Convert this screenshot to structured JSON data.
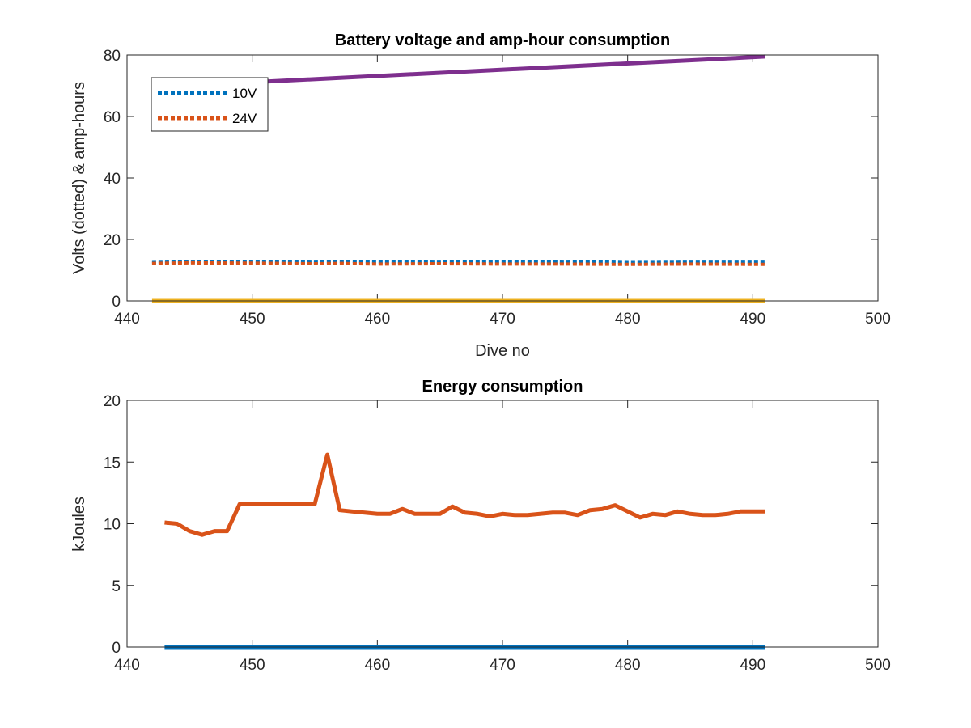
{
  "chart_data": [
    {
      "type": "line",
      "title": "Battery voltage and amp-hour consumption",
      "xlabel": "Dive no",
      "ylabel": "Volts (dotted) & amp-hours",
      "xlim": [
        440,
        500
      ],
      "ylim": [
        0,
        80
      ],
      "xticks": [
        "440",
        "450",
        "460",
        "470",
        "480",
        "490",
        "500"
      ],
      "yticks": [
        "0",
        "20",
        "40",
        "60",
        "80"
      ],
      "grid": false,
      "legend": {
        "placement": "top-left",
        "entries": [
          "10V",
          "24V"
        ]
      },
      "series": [
        {
          "name": "10V",
          "style": "dotted",
          "color": "#0072BD",
          "x": [
            442,
            445,
            450,
            455,
            457,
            460,
            465,
            470,
            475,
            477,
            480,
            485,
            491
          ],
          "y": [
            12.5,
            12.8,
            12.8,
            12.6,
            12.9,
            12.7,
            12.6,
            12.8,
            12.6,
            12.8,
            12.5,
            12.6,
            12.6
          ]
        },
        {
          "name": "24V",
          "style": "dotted",
          "color": "#D95319",
          "x": [
            442,
            445,
            450,
            455,
            457,
            460,
            465,
            470,
            475,
            480,
            485,
            491
          ],
          "y": [
            12.2,
            12.4,
            12.3,
            12.1,
            12.2,
            12.0,
            12.1,
            12.0,
            12.0,
            11.9,
            12.0,
            11.9
          ]
        },
        {
          "style": "solid",
          "color": "#EDB120",
          "x": [
            442,
            491
          ],
          "y": [
            0,
            0
          ]
        },
        {
          "style": "solid",
          "color": "#7E2F8E",
          "x": [
            442,
            491
          ],
          "y": [
            69.5,
            79.5
          ]
        }
      ]
    },
    {
      "type": "line",
      "title": "Energy consumption",
      "xlabel": "",
      "ylabel": "kJoules",
      "xlim": [
        440,
        500
      ],
      "ylim": [
        0,
        20
      ],
      "xticks": [
        "440",
        "450",
        "460",
        "470",
        "480",
        "490",
        "500"
      ],
      "yticks": [
        "0",
        "5",
        "10",
        "15",
        "20"
      ],
      "grid": false,
      "series": [
        {
          "style": "solid",
          "color": "#0072BD",
          "x": [
            443,
            491
          ],
          "y": [
            0,
            0
          ]
        },
        {
          "style": "solid",
          "color": "#D95319",
          "x": [
            443,
            444,
            445,
            446,
            447,
            448,
            449,
            450,
            451,
            452,
            453,
            454,
            455,
            456,
            457,
            458,
            459,
            460,
            461,
            462,
            463,
            464,
            465,
            466,
            467,
            468,
            469,
            470,
            471,
            472,
            473,
            474,
            475,
            476,
            477,
            478,
            479,
            480,
            481,
            482,
            483,
            484,
            485,
            486,
            487,
            488,
            489,
            490,
            491
          ],
          "y": [
            10.1,
            10.0,
            9.4,
            9.1,
            9.4,
            9.4,
            11.6,
            11.6,
            11.6,
            11.6,
            11.6,
            11.6,
            11.6,
            15.6,
            11.1,
            11.0,
            10.9,
            10.8,
            10.8,
            11.2,
            10.8,
            10.8,
            10.8,
            11.4,
            10.9,
            10.8,
            10.6,
            10.8,
            10.7,
            10.7,
            10.8,
            10.9,
            10.9,
            10.7,
            11.1,
            11.2,
            11.5,
            11.0,
            10.5,
            10.8,
            10.7,
            11.0,
            10.8,
            10.7,
            10.7,
            10.8,
            11.0,
            11.0,
            11.0
          ]
        }
      ]
    }
  ]
}
